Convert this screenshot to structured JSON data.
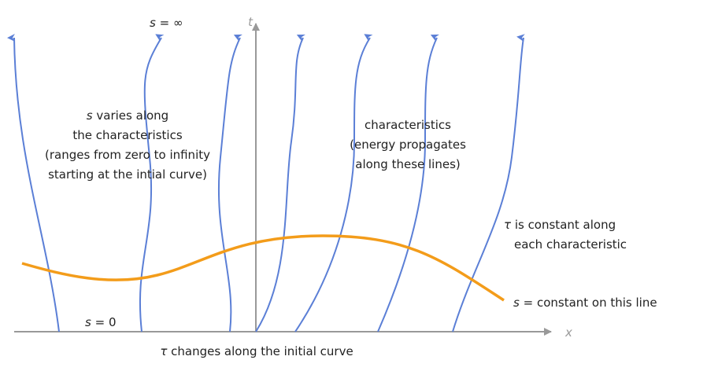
{
  "labels": {
    "s_infinity": {
      "symbol": "s",
      "text": "= ∞"
    },
    "t_axis": "t",
    "x_axis": "x",
    "s_varies": {
      "symbol": "s",
      "lines": [
        "varies along",
        "the characteristics",
        "(ranges from zero to infinity",
        "starting at the intial curve)"
      ]
    },
    "characteristics": [
      "characteristics",
      "(energy propagates",
      "along these lines)"
    ],
    "tau_constant": {
      "symbol": "τ",
      "lines": [
        "is constant along",
        "each characteristic"
      ]
    },
    "s_constant": {
      "symbol": "s",
      "text": "= constant on this line"
    },
    "s_zero": {
      "symbol": "s",
      "text": "= 0"
    },
    "tau_changes": {
      "symbol": "τ",
      "text": "changes along the initial curve"
    }
  }
}
